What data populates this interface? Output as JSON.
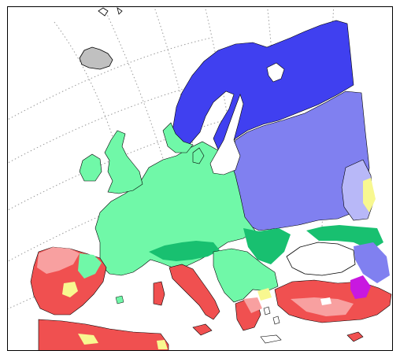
{
  "map": {
    "projection": "orthographic",
    "graticule": "dotted",
    "legend": "none",
    "region_colors": {
      "boreal_dark": "#4040f0",
      "continental_mid": "#8080f0",
      "steppe_light": "#b8b8f8",
      "temperate_oceanic": "#70f8a8",
      "transition_green": "#18c070",
      "mediterranean_red": "#f05050",
      "warm_pink": "#f8a0a0",
      "semi_arid_yellow": "#f8f890",
      "subtropical_magenta": "#c818e0",
      "ice_grey": "#c0c0c0",
      "sea": "#ffffff",
      "outline": "#000000"
    }
  }
}
